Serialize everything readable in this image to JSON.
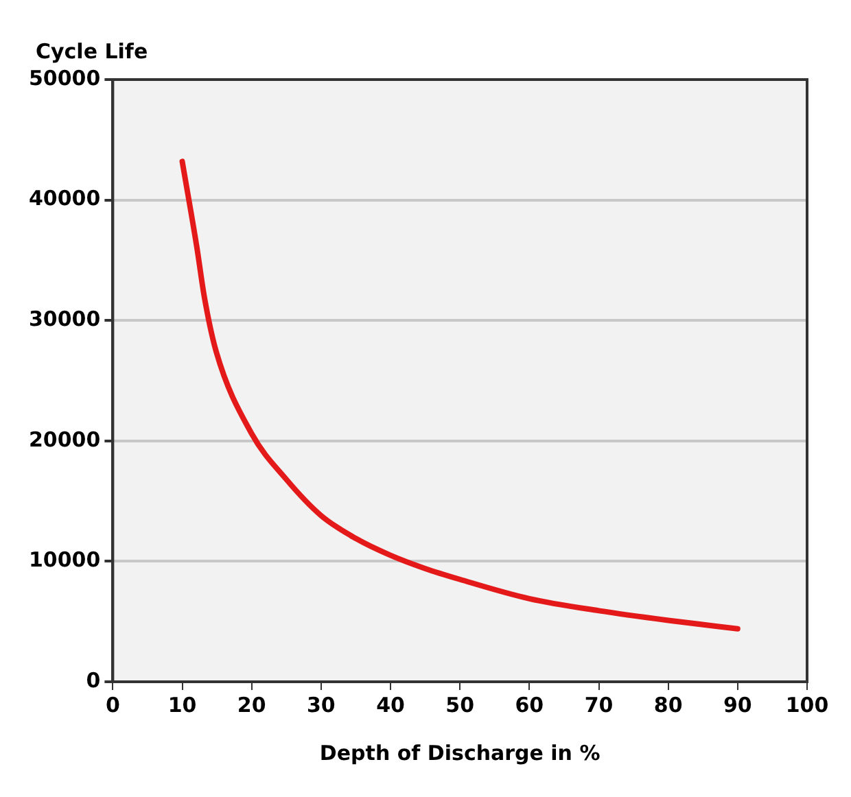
{
  "chart_data": {
    "type": "line",
    "xlabel": "Depth of Discharge in %",
    "ylabel": "Cycle Life",
    "series": [
      {
        "color": "#e41a1a",
        "x": [
          10,
          12.1,
          13.2,
          14.9,
          20,
          25,
          30,
          35,
          40,
          45,
          50,
          60,
          70,
          80,
          90
        ],
        "values": [
          43200,
          36100,
          31900,
          27400,
          20600,
          16800,
          13800,
          11900,
          10500,
          9400,
          8500,
          6900,
          5900,
          5100,
          4400
        ]
      }
    ],
    "xlim": [
      0,
      100
    ],
    "xticks": [
      0,
      10,
      20,
      30,
      40,
      50,
      60,
      70,
      80,
      90,
      100
    ],
    "ylim": [
      0,
      50000
    ],
    "yticks": [
      0,
      10000,
      20000,
      30000,
      40000,
      50000
    ],
    "grid": "y",
    "legend": false,
    "marker": "none",
    "line_style": "solid"
  }
}
